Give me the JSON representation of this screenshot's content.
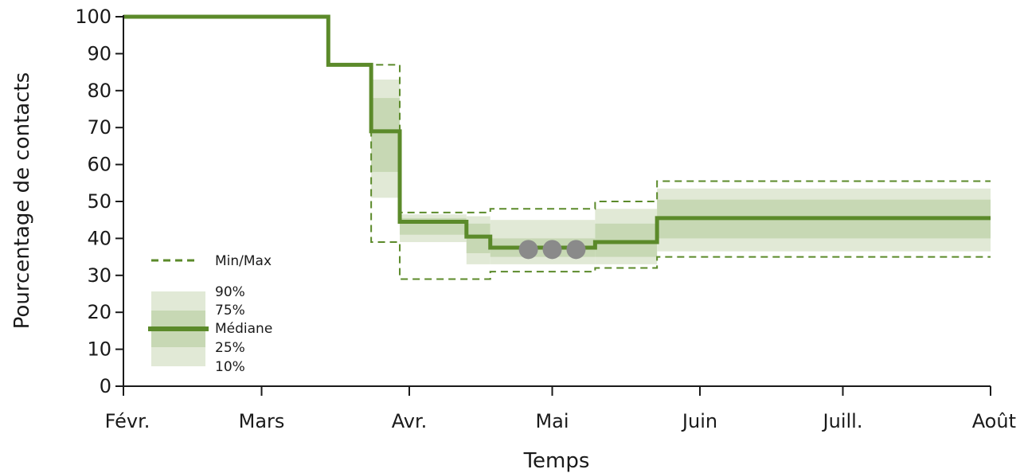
{
  "chart_data": {
    "type": "line",
    "xlabel": "Temps",
    "ylabel": "Pourcentage de contacts",
    "ylim": [
      0,
      100
    ],
    "yticks": [
      0,
      10,
      20,
      30,
      40,
      50,
      60,
      70,
      80,
      90,
      100
    ],
    "xlim": [
      "2020-02-01",
      "2020-08-01"
    ],
    "xticks": [
      {
        "date": "2020-02-01",
        "label": "Févr."
      },
      {
        "date": "2020-03-01",
        "label": "Mars"
      },
      {
        "date": "2020-04-01",
        "label": "Avr."
      },
      {
        "date": "2020-05-01",
        "label": "Mai"
      },
      {
        "date": "2020-06-01",
        "label": "Juin"
      },
      {
        "date": "2020-07-01",
        "label": "Juill."
      },
      {
        "date": "2020-08-01",
        "label": "Août"
      }
    ],
    "grid": false,
    "colors": {
      "median": "#5b8a2a",
      "band_outer": "#e1e9d6",
      "band_inner": "#c7d8b4",
      "minmax": "#5b8a2a",
      "markers": "#8a8a8a"
    },
    "segments": [
      {
        "start": "2020-02-01",
        "end": "2020-03-15",
        "median": 100
      },
      {
        "start": "2020-03-15",
        "end": "2020-03-24",
        "median": 87,
        "min": 87,
        "max": 87
      },
      {
        "start": "2020-03-24",
        "end": "2020-03-30",
        "median": 69,
        "min": 39,
        "max": 87,
        "p10": 51,
        "p25": 58,
        "p75": 78,
        "p90": 83
      },
      {
        "start": "2020-03-30",
        "end": "2020-04-13",
        "median": 44.5,
        "min": 29,
        "max": 47,
        "p10": 39,
        "p25": 41,
        "p75": 45.5,
        "p90": 46.5
      },
      {
        "start": "2020-04-13",
        "end": "2020-04-18",
        "median": 40.5,
        "min": 29,
        "max": 47,
        "p10": 33,
        "p25": 36,
        "p75": 44,
        "p90": 46
      },
      {
        "start": "2020-04-18",
        "end": "2020-05-10",
        "median": 37.5,
        "min": 31,
        "max": 48,
        "p10": 33,
        "p25": 35,
        "p75": 40,
        "p90": 45
      },
      {
        "start": "2020-05-10",
        "end": "2020-05-23",
        "median": 39,
        "min": 32,
        "max": 50,
        "p10": 33,
        "p25": 35,
        "p75": 44,
        "p90": 48
      },
      {
        "start": "2020-05-23",
        "end": "2020-08-01",
        "median": 45.5,
        "min": 35,
        "max": 55.5,
        "p10": 36.5,
        "p25": 40,
        "p75": 50.5,
        "p90": 53.5
      }
    ],
    "markers": [
      {
        "date": "2020-04-26",
        "value": 37
      },
      {
        "date": "2020-05-01",
        "value": 37
      },
      {
        "date": "2020-05-06",
        "value": 37
      }
    ],
    "legend": {
      "placement": "bottom-left",
      "minmax_label": "Min/Max",
      "labels": [
        "90%",
        "75%",
        "Médiane",
        "25%",
        "10%"
      ]
    }
  }
}
